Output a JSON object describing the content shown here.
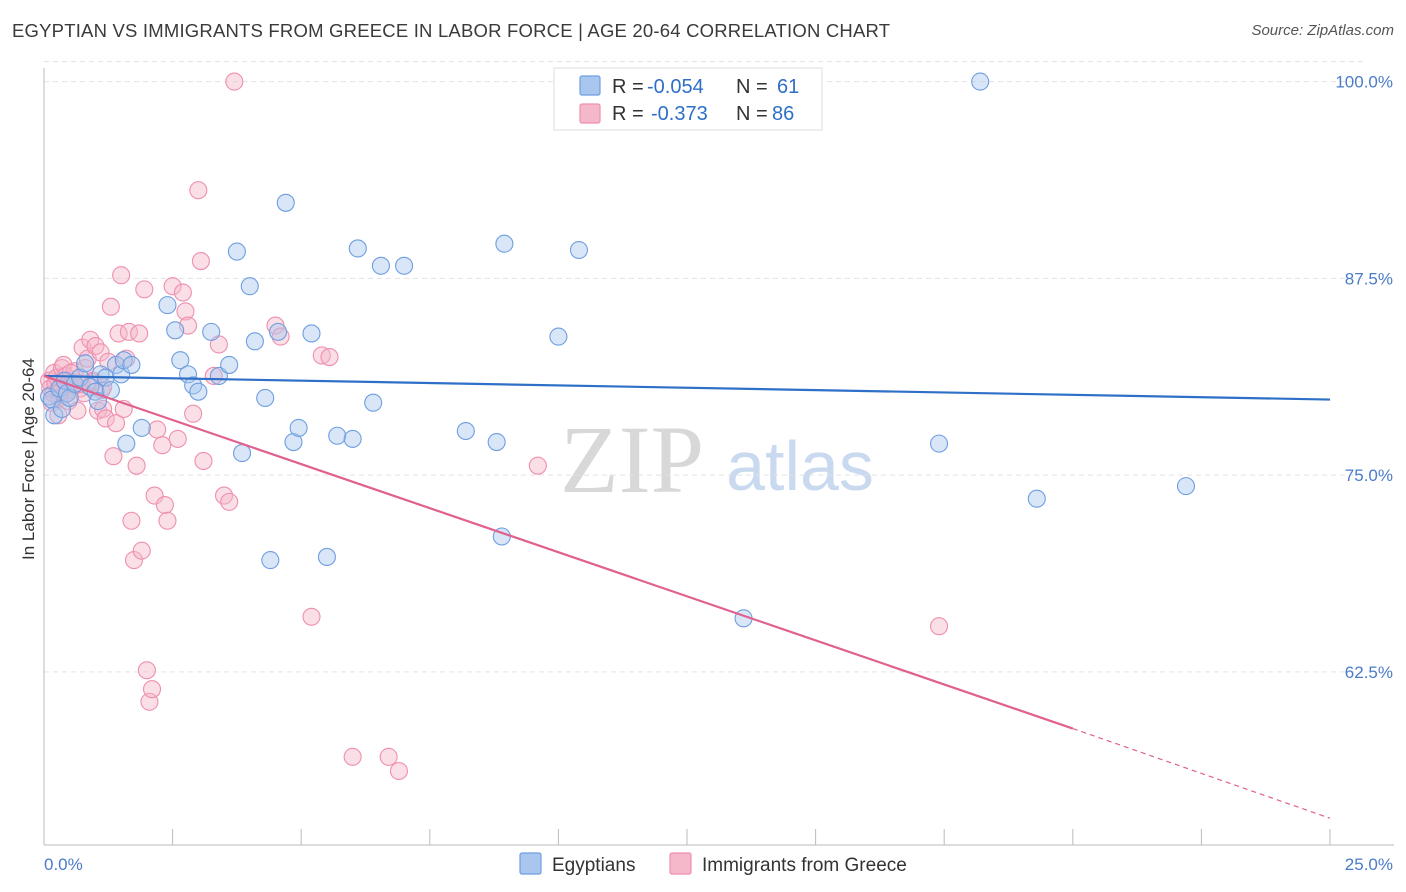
{
  "header": {
    "title": "EGYPTIAN VS IMMIGRANTS FROM GREECE IN LABOR FORCE | AGE 20-64 CORRELATION CHART",
    "source": "Source: ZipAtlas.com"
  },
  "watermark": {
    "zip": "ZIP",
    "atlas": "atlas"
  },
  "colors": {
    "blue_fill": "#a9c7ee",
    "blue_stroke": "#6f9ee0",
    "blue_line": "#2e6fc7",
    "pink_fill": "#f5b8ca",
    "pink_stroke": "#ef8fae",
    "pink_line": "#e0608e",
    "axis_label": "#4a7cc9"
  },
  "legend": {
    "rows": [
      {
        "r_label": "R =",
        "r_value": "-0.054",
        "n_label": "N =",
        "n_value": "61"
      },
      {
        "r_label": "R =",
        "r_value": "-0.373",
        "n_label": "N =",
        "n_value": "86"
      }
    ]
  },
  "bottom_legend": {
    "series1": "Egyptians",
    "series2": "Immigrants from Greece"
  },
  "chart_data": {
    "type": "scatter",
    "xlabel": "",
    "ylabel": "In Labor Force | Age 20-64",
    "xlim": [
      0,
      25
    ],
    "ylim": [
      51.5,
      101.5
    ],
    "x_tick_labels": [
      "0.0%",
      "25.0%"
    ],
    "y_ticks": [
      62.5,
      75.0,
      87.5,
      100.0
    ],
    "y_tick_labels": [
      "62.5%",
      "75.0%",
      "87.5%",
      "100.0%"
    ],
    "grid": "horizontal dashed",
    "legend_position": "top-center",
    "series": [
      {
        "name": "Egyptians",
        "trend": {
          "x": [
            0.0,
            25.0
          ],
          "y": [
            81.3,
            79.8
          ]
        },
        "points": [
          [
            0.1,
            80.0
          ],
          [
            0.15,
            79.8
          ],
          [
            0.2,
            78.8
          ],
          [
            0.3,
            80.5
          ],
          [
            0.35,
            79.2
          ],
          [
            0.4,
            81.0
          ],
          [
            0.45,
            80.2
          ],
          [
            0.5,
            79.9
          ],
          [
            0.6,
            80.8
          ],
          [
            0.7,
            81.2
          ],
          [
            0.8,
            82.1
          ],
          [
            0.9,
            80.6
          ],
          [
            1.0,
            80.3
          ],
          [
            1.05,
            79.7
          ],
          [
            1.1,
            81.4
          ],
          [
            1.2,
            81.2
          ],
          [
            1.3,
            80.4
          ],
          [
            1.4,
            82.0
          ],
          [
            1.5,
            81.4
          ],
          [
            1.55,
            82.3
          ],
          [
            1.6,
            77.0
          ],
          [
            1.7,
            82.0
          ],
          [
            2.55,
            84.2
          ],
          [
            1.9,
            78.0
          ],
          [
            2.4,
            85.8
          ],
          [
            2.65,
            82.3
          ],
          [
            2.8,
            81.4
          ],
          [
            2.9,
            80.7
          ],
          [
            3.0,
            80.3
          ],
          [
            3.25,
            84.1
          ],
          [
            3.4,
            81.3
          ],
          [
            3.6,
            82.0
          ],
          [
            3.75,
            89.2
          ],
          [
            3.85,
            76.4
          ],
          [
            4.0,
            87.0
          ],
          [
            4.1,
            83.5
          ],
          [
            4.3,
            79.9
          ],
          [
            4.4,
            69.6
          ],
          [
            4.55,
            84.1
          ],
          [
            4.7,
            92.3
          ],
          [
            4.85,
            77.1
          ],
          [
            4.95,
            78.0
          ],
          [
            5.2,
            84.0
          ],
          [
            5.5,
            69.8
          ],
          [
            5.7,
            77.5
          ],
          [
            6.0,
            77.3
          ],
          [
            6.1,
            89.4
          ],
          [
            6.4,
            79.6
          ],
          [
            6.55,
            88.3
          ],
          [
            7.0,
            88.3
          ],
          [
            8.2,
            77.8
          ],
          [
            8.8,
            77.1
          ],
          [
            8.9,
            71.1
          ],
          [
            8.95,
            89.7
          ],
          [
            10.0,
            83.8
          ],
          [
            10.4,
            89.3
          ],
          [
            13.6,
            65.9
          ],
          [
            17.4,
            77.0
          ],
          [
            18.2,
            100.0
          ],
          [
            19.3,
            73.5
          ],
          [
            22.2,
            74.3
          ]
        ]
      },
      {
        "name": "Immigrants from Greece",
        "trend": {
          "x": [
            0.0,
            20.0
          ],
          "y": [
            81.3,
            58.9
          ]
        },
        "trend_dashed": {
          "x": [
            20.0,
            25.0
          ],
          "y": [
            58.9,
            53.2
          ]
        },
        "points": [
          [
            0.1,
            81.0
          ],
          [
            0.12,
            80.5
          ],
          [
            0.15,
            79.6
          ],
          [
            0.18,
            80.2
          ],
          [
            0.2,
            81.5
          ],
          [
            0.22,
            80.8
          ],
          [
            0.25,
            81.2
          ],
          [
            0.28,
            78.8
          ],
          [
            0.3,
            79.9
          ],
          [
            0.33,
            80.6
          ],
          [
            0.35,
            81.8
          ],
          [
            0.38,
            82.0
          ],
          [
            0.4,
            80.1
          ],
          [
            0.42,
            81.3
          ],
          [
            0.45,
            80.4
          ],
          [
            0.48,
            79.7
          ],
          [
            0.5,
            81.0
          ],
          [
            0.55,
            80.9
          ],
          [
            0.6,
            81.6
          ],
          [
            0.65,
            79.1
          ],
          [
            0.7,
            80.5
          ],
          [
            0.75,
            83.1
          ],
          [
            0.78,
            80.2
          ],
          [
            0.8,
            81.8
          ],
          [
            0.85,
            82.4
          ],
          [
            0.9,
            83.6
          ],
          [
            0.95,
            80.9
          ],
          [
            1.0,
            83.2
          ],
          [
            1.05,
            79.1
          ],
          [
            1.1,
            82.8
          ],
          [
            1.12,
            80.4
          ],
          [
            1.15,
            79.2
          ],
          [
            1.2,
            78.6
          ],
          [
            1.25,
            82.2
          ],
          [
            1.3,
            85.7
          ],
          [
            1.35,
            76.2
          ],
          [
            1.4,
            78.3
          ],
          [
            1.45,
            84.0
          ],
          [
            1.5,
            87.7
          ],
          [
            1.55,
            79.2
          ],
          [
            1.6,
            82.4
          ],
          [
            1.65,
            84.1
          ],
          [
            1.7,
            72.1
          ],
          [
            1.75,
            69.6
          ],
          [
            1.8,
            75.6
          ],
          [
            1.85,
            84.0
          ],
          [
            1.9,
            70.2
          ],
          [
            1.95,
            86.8
          ],
          [
            2.0,
            62.6
          ],
          [
            2.05,
            60.6
          ],
          [
            2.1,
            61.4
          ],
          [
            2.15,
            73.7
          ],
          [
            2.2,
            77.9
          ],
          [
            2.3,
            76.9
          ],
          [
            2.35,
            73.1
          ],
          [
            2.4,
            72.1
          ],
          [
            2.5,
            87.0
          ],
          [
            2.6,
            77.3
          ],
          [
            2.7,
            86.6
          ],
          [
            2.75,
            85.4
          ],
          [
            2.8,
            84.5
          ],
          [
            2.9,
            78.9
          ],
          [
            3.0,
            93.1
          ],
          [
            3.05,
            88.6
          ],
          [
            3.1,
            75.9
          ],
          [
            3.3,
            81.3
          ],
          [
            3.4,
            83.3
          ],
          [
            3.5,
            73.7
          ],
          [
            3.6,
            73.3
          ],
          [
            3.7,
            100.0
          ],
          [
            4.5,
            84.5
          ],
          [
            4.6,
            83.8
          ],
          [
            5.2,
            66.0
          ],
          [
            5.4,
            82.6
          ],
          [
            5.55,
            82.5
          ],
          [
            6.0,
            57.1
          ],
          [
            6.7,
            57.1
          ],
          [
            6.9,
            56.2
          ],
          [
            9.6,
            75.6
          ],
          [
            17.4,
            65.4
          ],
          [
            0.6,
            80.7
          ],
          [
            0.95,
            81.0
          ],
          [
            1.15,
            80.6
          ],
          [
            0.32,
            80.3
          ],
          [
            0.52,
            81.5
          ],
          [
            0.72,
            80.8
          ]
        ]
      }
    ]
  }
}
